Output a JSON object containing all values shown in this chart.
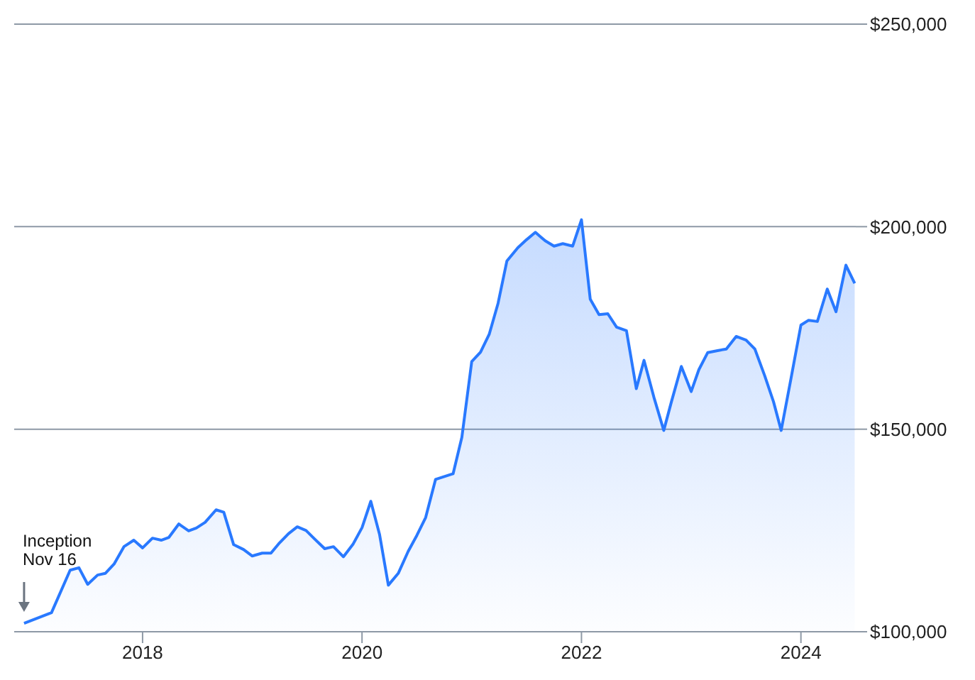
{
  "chart_data": {
    "type": "area",
    "x": [
      2016.92,
      2017.17,
      2017.34,
      2017.42,
      2017.5,
      2017.59,
      2017.66,
      2017.74,
      2017.83,
      2017.92,
      2018.0,
      2018.09,
      2018.17,
      2018.24,
      2018.33,
      2018.42,
      2018.49,
      2018.57,
      2018.67,
      2018.74,
      2018.83,
      2018.92,
      2019.0,
      2019.09,
      2019.17,
      2019.24,
      2019.33,
      2019.41,
      2019.49,
      2019.56,
      2019.66,
      2019.74,
      2019.83,
      2019.92,
      2020.0,
      2020.08,
      2020.16,
      2020.24,
      2020.33,
      2020.42,
      2020.5,
      2020.58,
      2020.67,
      2020.83,
      2020.91,
      2021.0,
      2021.08,
      2021.16,
      2021.24,
      2021.32,
      2021.42,
      2021.5,
      2021.58,
      2021.67,
      2021.75,
      2021.83,
      2021.92,
      2022.0,
      2022.08,
      2022.16,
      2022.24,
      2022.32,
      2022.41,
      2022.5,
      2022.57,
      2022.66,
      2022.75,
      2022.82,
      2022.91,
      2023.0,
      2023.07,
      2023.15,
      2023.24,
      2023.32,
      2023.41,
      2023.5,
      2023.58,
      2023.67,
      2023.75,
      2023.82,
      2023.91,
      2024.0,
      2024.07,
      2024.15,
      2024.24,
      2024.32,
      2024.41,
      2024.49
    ],
    "series": [
      {
        "color": "#2979ff",
        "values": [
          102100,
          104700,
          115200,
          115800,
          111700,
          114000,
          114400,
          116700,
          121000,
          122600,
          120700,
          123100,
          122600,
          123300,
          126600,
          124900,
          125600,
          127000,
          130100,
          129500,
          121500,
          120300,
          118700,
          119400,
          119400,
          121700,
          124200,
          125900,
          125000,
          123100,
          120500,
          121000,
          118500,
          121700,
          125700,
          132200,
          124000,
          111500,
          114400,
          119800,
          123800,
          128200,
          137600,
          139000,
          148000,
          166700,
          169000,
          173500,
          181100,
          191500,
          194800,
          196800,
          198600,
          196500,
          195200,
          195800,
          195200,
          201700,
          182100,
          178300,
          178500,
          175200,
          174300,
          160000,
          167000,
          157900,
          149700,
          156800,
          165500,
          159300,
          164700,
          168900,
          169400,
          169800,
          172900,
          172000,
          169800,
          163200,
          156800,
          149700,
          162600,
          175700,
          176900,
          176600,
          184600,
          179000,
          190500,
          186000
        ]
      }
    ],
    "xlim": [
      2016.83,
      2024.5
    ],
    "xticks": [
      2018,
      2020,
      2022,
      2024
    ],
    "ylim": [
      100000,
      250000
    ],
    "yticks": [
      {
        "value": 100000,
        "label": "$100,000"
      },
      {
        "value": 150000,
        "label": "$150,000"
      },
      {
        "value": 200000,
        "label": "$200,000"
      },
      {
        "value": 250000,
        "label": "$250,000"
      }
    ],
    "grid": "y",
    "annotations": [
      "Inception\nNov 16"
    ]
  }
}
